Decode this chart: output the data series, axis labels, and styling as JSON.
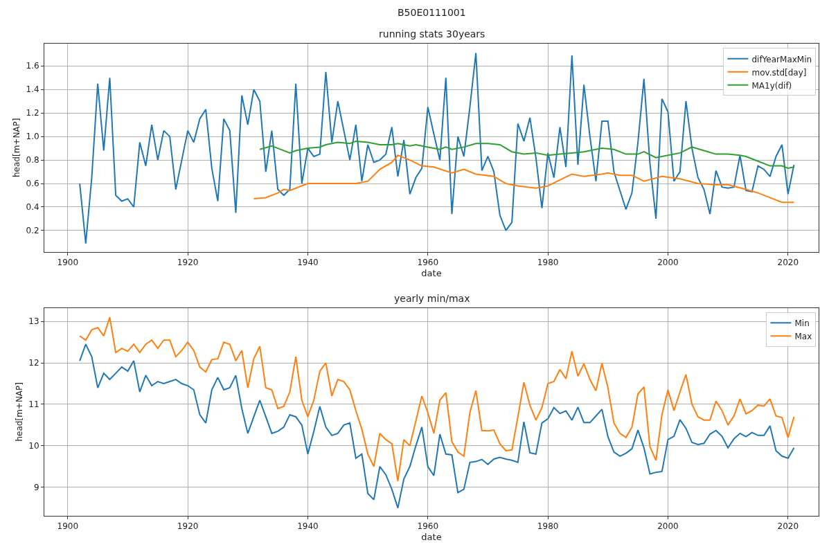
{
  "chart_data": [
    {
      "type": "line",
      "title": "running stats 30years",
      "annotations": [
        "B50E0111001"
      ],
      "xlabel": "date",
      "ylabel": "head[m+NAP]",
      "xlim": [
        1896.1,
        2025.1
      ],
      "xticks": [
        1900,
        1920,
        1940,
        1960,
        1980,
        2000,
        2020
      ],
      "ylim": [
        0.02,
        1.79
      ],
      "yticks": [
        0.2,
        0.4,
        0.6,
        0.8,
        {
          "value": 1,
          "label": "1.0"
        },
        1.2,
        1.4,
        1.6
      ],
      "grid": true,
      "legend": "top right",
      "marker": "none",
      "line_style": "solid",
      "series": [
        {
          "name": "difYearMaxMin",
          "color": "#1f77b4",
          "x": [
            1902,
            1903,
            1904,
            1905,
            1906,
            1907,
            1908,
            1909,
            1910,
            1911,
            1912,
            1913,
            1914,
            1915,
            1916,
            1917,
            1918,
            1919,
            1920,
            1921,
            1922,
            1923,
            1924,
            1925,
            1926,
            1927,
            1928,
            1929,
            1930,
            1931,
            1932,
            1933,
            1934,
            1935,
            1936,
            1937,
            1938,
            1939,
            1940,
            1941,
            1942,
            1943,
            1944,
            1945,
            1946,
            1947,
            1948,
            1949,
            1950,
            1951,
            1952,
            1953,
            1954,
            1955,
            1956,
            1957,
            1958,
            1959,
            1960,
            1961,
            1962,
            1963,
            1964,
            1965,
            1966,
            1967,
            1968,
            1969,
            1970,
            1971,
            1972,
            1973,
            1974,
            1975,
            1976,
            1977,
            1978,
            1979,
            1980,
            1981,
            1982,
            1983,
            1984,
            1985,
            1986,
            1987,
            1988,
            1989,
            1990,
            1991,
            1992,
            1993,
            1994,
            1995,
            1996,
            1997,
            1998,
            1999,
            2000,
            2001,
            2002,
            2003,
            2004,
            2005,
            2006,
            2007,
            2008,
            2009,
            2010,
            2011,
            2012,
            2013,
            2014,
            2015,
            2016,
            2017,
            2018,
            2019,
            2020,
            2021
          ],
          "values": [
            0.6,
            0.09,
            0.65,
            1.45,
            0.88,
            1.5,
            0.5,
            0.45,
            0.47,
            0.4,
            0.95,
            0.75,
            1.1,
            0.8,
            1.05,
            1.0,
            0.55,
            0.8,
            1.05,
            0.95,
            1.15,
            1.23,
            0.73,
            0.45,
            1.15,
            1.05,
            0.35,
            1.35,
            1.1,
            1.4,
            1.3,
            0.7,
            1.05,
            0.55,
            0.5,
            0.55,
            1.45,
            0.6,
            0.9,
            0.83,
            0.85,
            1.55,
            0.95,
            1.3,
            1.05,
            0.8,
            1.1,
            0.62,
            0.93,
            0.78,
            0.8,
            0.85,
            1.08,
            0.66,
            0.97,
            0.51,
            0.65,
            0.73,
            1.25,
            1.02,
            0.8,
            1.5,
            0.34,
            1.0,
            0.83,
            1.25,
            1.71,
            0.71,
            0.83,
            0.7,
            0.33,
            0.2,
            0.27,
            1.11,
            0.96,
            1.16,
            0.82,
            0.39,
            0.86,
            0.65,
            1.08,
            0.74,
            1.69,
            0.76,
            1.44,
            1.0,
            0.62,
            1.13,
            1.13,
            0.7,
            0.54,
            0.38,
            0.52,
            0.95,
            1.49,
            0.77,
            0.3,
            1.32,
            1.21,
            0.62,
            0.7,
            1.3,
            0.9,
            0.65,
            0.55,
            0.34,
            0.71,
            0.57,
            0.56,
            0.57,
            0.84,
            0.54,
            0.53,
            0.75,
            0.72,
            0.66,
            0.83,
            0.93,
            0.51,
            0.76
          ]
        },
        {
          "name": "mov.std[day]",
          "color": "#ff7f0e",
          "x": [
            1931,
            1933,
            1935,
            1936,
            1937,
            1940,
            1944,
            1948,
            1950,
            1952,
            1954,
            1955,
            1957,
            1959,
            1961,
            1964,
            1966,
            1968,
            1971,
            1973,
            1975,
            1978,
            1980,
            1982,
            1984,
            1986,
            1989,
            1990,
            1992,
            1994,
            1996,
            1999,
            2002,
            2005,
            2008,
            2010,
            2013,
            2015,
            2017,
            2019,
            2021
          ],
          "values": [
            0.47,
            0.48,
            0.52,
            0.55,
            0.54,
            0.6,
            0.6,
            0.6,
            0.62,
            0.72,
            0.78,
            0.84,
            0.8,
            0.75,
            0.74,
            0.69,
            0.72,
            0.68,
            0.66,
            0.6,
            0.58,
            0.56,
            0.58,
            0.63,
            0.68,
            0.66,
            0.68,
            0.69,
            0.67,
            0.67,
            0.62,
            0.66,
            0.64,
            0.6,
            0.59,
            0.59,
            0.55,
            0.52,
            0.48,
            0.44,
            0.44
          ]
        },
        {
          "name": "MA1y(dif)",
          "color": "#2ca02c",
          "x": [
            1932,
            1934,
            1935,
            1937,
            1938,
            1940,
            1942,
            1943,
            1945,
            1947,
            1948,
            1950,
            1952,
            1954,
            1955,
            1957,
            1958,
            1960,
            1962,
            1963,
            1964,
            1966,
            1968,
            1970,
            1972,
            1974,
            1976,
            1978,
            1980,
            1982,
            1984,
            1986,
            1988,
            1989,
            1991,
            1993,
            1995,
            1996,
            1998,
            2000,
            2002,
            2004,
            2006,
            2008,
            2010,
            2012,
            2013,
            2015,
            2017,
            2019,
            2020,
            2021
          ],
          "values": [
            0.89,
            0.92,
            0.9,
            0.86,
            0.88,
            0.9,
            0.91,
            0.93,
            0.95,
            0.94,
            0.96,
            0.95,
            0.93,
            0.93,
            0.94,
            0.92,
            0.93,
            0.91,
            0.89,
            0.91,
            0.89,
            0.91,
            0.94,
            0.94,
            0.93,
            0.87,
            0.85,
            0.86,
            0.84,
            0.85,
            0.86,
            0.87,
            0.89,
            0.9,
            0.89,
            0.85,
            0.85,
            0.87,
            0.82,
            0.84,
            0.86,
            0.91,
            0.88,
            0.85,
            0.85,
            0.84,
            0.83,
            0.79,
            0.75,
            0.75,
            0.73,
            0.74
          ]
        }
      ]
    },
    {
      "type": "line",
      "title": "yearly min/max",
      "xlabel": "date",
      "ylabel": "head[m+NAP]",
      "xlim": [
        1896.1,
        2025.1
      ],
      "xticks": [
        1900,
        1920,
        1940,
        1960,
        1980,
        2000,
        2020
      ],
      "ylim": [
        8.31,
        13.33
      ],
      "yticks": [
        9,
        10,
        11,
        12,
        13
      ],
      "grid": true,
      "legend": "top right",
      "marker": "none",
      "line_style": "solid",
      "x": [
        1902,
        1903,
        1904,
        1905,
        1906,
        1907,
        1908,
        1909,
        1910,
        1911,
        1912,
        1913,
        1914,
        1915,
        1916,
        1917,
        1918,
        1919,
        1920,
        1921,
        1922,
        1923,
        1924,
        1925,
        1926,
        1927,
        1928,
        1929,
        1930,
        1931,
        1932,
        1933,
        1934,
        1935,
        1936,
        1937,
        1938,
        1939,
        1940,
        1941,
        1942,
        1943,
        1944,
        1945,
        1946,
        1947,
        1948,
        1949,
        1950,
        1951,
        1952,
        1953,
        1954,
        1955,
        1956,
        1957,
        1958,
        1959,
        1960,
        1961,
        1962,
        1963,
        1964,
        1965,
        1966,
        1967,
        1968,
        1969,
        1970,
        1971,
        1972,
        1973,
        1974,
        1975,
        1976,
        1977,
        1978,
        1979,
        1980,
        1981,
        1982,
        1983,
        1984,
        1985,
        1986,
        1987,
        1988,
        1989,
        1990,
        1991,
        1992,
        1993,
        1994,
        1995,
        1996,
        1997,
        1998,
        1999,
        2000,
        2001,
        2002,
        2003,
        2004,
        2005,
        2006,
        2007,
        2008,
        2009,
        2010,
        2011,
        2012,
        2013,
        2014,
        2015,
        2016,
        2017,
        2018,
        2019,
        2020,
        2021
      ],
      "series": [
        {
          "name": "Min",
          "color": "#1f77b4",
          "values": [
            12.05,
            12.45,
            12.15,
            11.4,
            11.75,
            11.6,
            11.75,
            11.9,
            11.8,
            12.05,
            11.3,
            11.7,
            11.45,
            11.55,
            11.5,
            11.55,
            11.6,
            11.5,
            11.45,
            11.35,
            10.75,
            10.55,
            11.35,
            11.65,
            11.35,
            11.4,
            11.7,
            10.9,
            10.3,
            10.7,
            11.1,
            10.7,
            10.3,
            10.35,
            10.45,
            10.75,
            10.7,
            10.5,
            9.8,
            10.35,
            10.95,
            10.45,
            10.25,
            10.3,
            10.5,
            10.55,
            9.7,
            9.8,
            8.85,
            8.7,
            9.5,
            9.3,
            8.95,
            8.5,
            9.2,
            9.5,
            10.0,
            10.45,
            9.5,
            9.28,
            10.28,
            9.8,
            9.78,
            8.87,
            8.95,
            9.6,
            9.62,
            9.67,
            9.55,
            9.68,
            9.72,
            9.68,
            9.65,
            9.6,
            10.58,
            9.83,
            9.8,
            10.55,
            10.65,
            10.92,
            10.78,
            10.84,
            10.62,
            10.93,
            10.56,
            10.56,
            10.72,
            10.88,
            10.22,
            9.85,
            9.75,
            9.82,
            9.93,
            10.38,
            9.95,
            9.32,
            9.36,
            9.38,
            10.15,
            10.23,
            10.63,
            10.42,
            10.08,
            10.03,
            10.06,
            10.28,
            10.37,
            10.23,
            9.95,
            10.17,
            10.3,
            10.22,
            10.32,
            10.25,
            10.25,
            10.48,
            9.88,
            9.75,
            9.7,
            9.95
          ]
        },
        {
          "name": "Max",
          "color": "#ff7f0e",
          "values": [
            12.65,
            12.55,
            12.8,
            12.85,
            12.65,
            13.1,
            12.25,
            12.35,
            12.28,
            12.45,
            12.25,
            12.45,
            12.55,
            12.35,
            12.55,
            12.55,
            12.15,
            12.3,
            12.5,
            12.3,
            11.9,
            11.78,
            12.08,
            12.1,
            12.5,
            12.45,
            12.05,
            12.3,
            11.4,
            12.1,
            12.4,
            11.4,
            11.35,
            10.9,
            10.95,
            11.3,
            12.15,
            11.1,
            10.7,
            11.1,
            11.8,
            12.0,
            11.2,
            11.6,
            11.55,
            11.35,
            10.85,
            10.4,
            9.8,
            9.5,
            10.3,
            10.15,
            10.05,
            9.15,
            10.15,
            10.0,
            10.6,
            11.2,
            10.8,
            10.3,
            11.1,
            11.28,
            10.1,
            9.85,
            9.75,
            10.8,
            11.33,
            10.37,
            10.36,
            10.38,
            10.05,
            9.88,
            9.9,
            10.7,
            11.53,
            10.98,
            10.62,
            10.92,
            11.5,
            11.55,
            11.84,
            11.62,
            12.28,
            11.68,
            11.98,
            11.6,
            11.33,
            11.99,
            11.4,
            10.55,
            10.3,
            10.2,
            10.45,
            11.25,
            11.42,
            9.98,
            9.65,
            10.75,
            11.35,
            10.85,
            11.3,
            11.72,
            11.0,
            10.7,
            10.62,
            10.62,
            11.08,
            10.85,
            10.5,
            10.72,
            11.13,
            10.77,
            10.85,
            10.98,
            10.96,
            11.13,
            10.72,
            10.68,
            10.2,
            10.7
          ]
        }
      ]
    }
  ]
}
